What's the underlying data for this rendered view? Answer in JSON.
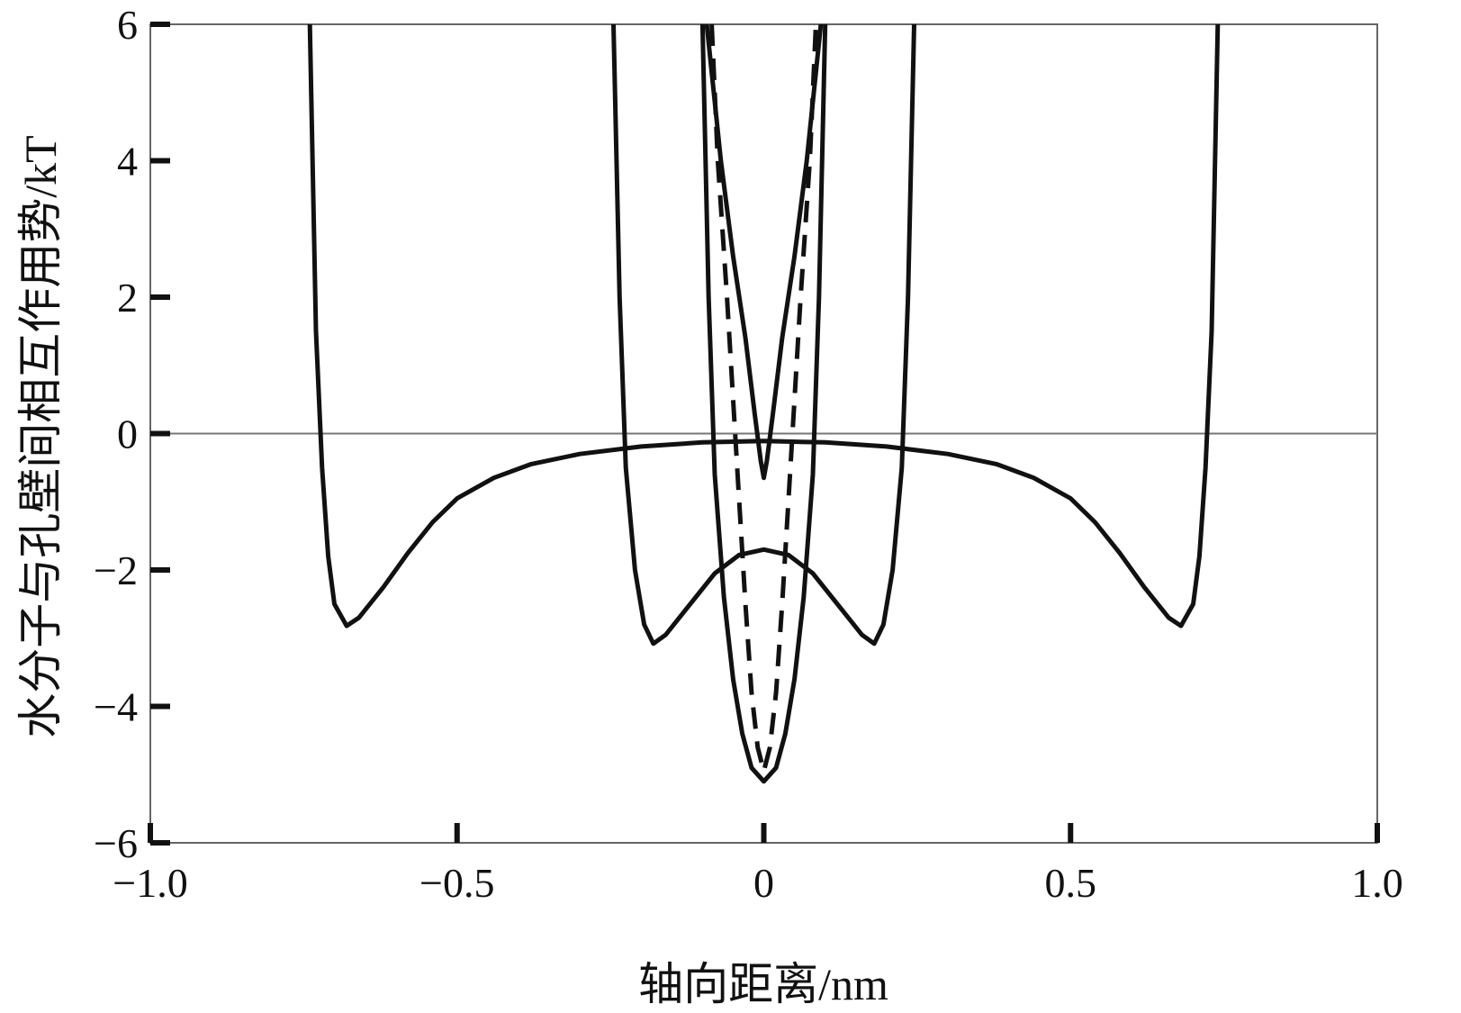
{
  "chart_data": {
    "type": "line",
    "xlabel": "轴向距离/nm",
    "ylabel": "水分子与孔壁间相互作用势/kT",
    "xlim": [
      -1.0,
      1.0
    ],
    "ylim": [
      -6,
      6
    ],
    "x_ticks": [
      "−1.0",
      "−0.5",
      "0",
      "0.5",
      "1.0"
    ],
    "y_ticks": [
      "−6",
      "−4",
      "−2",
      "0",
      "2",
      "4",
      "6"
    ],
    "x_tick_values": [
      -1.0,
      -0.5,
      0,
      0.5,
      1.0
    ],
    "y_tick_values": [
      -6,
      -4,
      -2,
      0,
      2,
      4,
      6
    ],
    "grid": false,
    "zero_line": true,
    "series": [
      {
        "style": "solid",
        "color": "#111111",
        "points": [
          [
            -0.74,
            6
          ],
          [
            -0.73,
            1.5
          ],
          [
            -0.72,
            -0.5
          ],
          [
            -0.71,
            -1.8
          ],
          [
            -0.7,
            -2.5
          ],
          [
            -0.68,
            -2.82
          ],
          [
            -0.66,
            -2.7
          ],
          [
            -0.62,
            -2.25
          ],
          [
            -0.58,
            -1.75
          ],
          [
            -0.54,
            -1.3
          ],
          [
            -0.5,
            -0.95
          ],
          [
            -0.44,
            -0.65
          ],
          [
            -0.38,
            -0.45
          ],
          [
            -0.3,
            -0.3
          ],
          [
            -0.2,
            -0.19
          ],
          [
            -0.1,
            -0.13
          ],
          [
            0,
            -0.11
          ],
          [
            0.1,
            -0.13
          ],
          [
            0.2,
            -0.19
          ],
          [
            0.3,
            -0.3
          ],
          [
            0.38,
            -0.45
          ],
          [
            0.44,
            -0.65
          ],
          [
            0.5,
            -0.95
          ],
          [
            0.54,
            -1.3
          ],
          [
            0.58,
            -1.75
          ],
          [
            0.62,
            -2.25
          ],
          [
            0.66,
            -2.7
          ],
          [
            0.68,
            -2.82
          ],
          [
            0.7,
            -2.5
          ],
          [
            0.71,
            -1.8
          ],
          [
            0.72,
            -0.5
          ],
          [
            0.73,
            1.5
          ],
          [
            0.74,
            6
          ]
        ]
      },
      {
        "style": "solid",
        "color": "#111111",
        "points": [
          [
            -0.245,
            6
          ],
          [
            -0.235,
            2.0
          ],
          [
            -0.225,
            -0.5
          ],
          [
            -0.21,
            -2.0
          ],
          [
            -0.195,
            -2.8
          ],
          [
            -0.18,
            -3.08
          ],
          [
            -0.16,
            -2.95
          ],
          [
            -0.12,
            -2.5
          ],
          [
            -0.08,
            -2.05
          ],
          [
            -0.04,
            -1.78
          ],
          [
            0,
            -1.7
          ],
          [
            0.04,
            -1.78
          ],
          [
            0.08,
            -2.05
          ],
          [
            0.12,
            -2.5
          ],
          [
            0.16,
            -2.95
          ],
          [
            0.18,
            -3.08
          ],
          [
            0.195,
            -2.8
          ],
          [
            0.21,
            -2.0
          ],
          [
            0.225,
            -0.5
          ],
          [
            0.235,
            2.0
          ],
          [
            0.245,
            6
          ]
        ]
      },
      {
        "style": "solid",
        "color": "#111111",
        "points": [
          [
            -0.1,
            6
          ],
          [
            -0.09,
            2.0
          ],
          [
            -0.08,
            -0.6
          ],
          [
            -0.065,
            -2.4
          ],
          [
            -0.05,
            -3.6
          ],
          [
            -0.035,
            -4.4
          ],
          [
            -0.02,
            -4.9
          ],
          [
            0,
            -5.1
          ],
          [
            0.02,
            -4.9
          ],
          [
            0.035,
            -4.4
          ],
          [
            0.05,
            -3.6
          ],
          [
            0.065,
            -2.4
          ],
          [
            0.08,
            -0.6
          ],
          [
            0.09,
            2.0
          ],
          [
            0.1,
            6
          ]
        ]
      },
      {
        "style": "solid",
        "color": "#111111",
        "points": [
          [
            -0.093,
            6
          ],
          [
            -0.07,
            4.0
          ],
          [
            -0.05,
            2.6
          ],
          [
            -0.03,
            1.4
          ],
          [
            -0.015,
            0.3
          ],
          [
            -0.005,
            -0.4
          ],
          [
            0,
            -0.65
          ],
          [
            0.005,
            -0.4
          ],
          [
            0.015,
            0.3
          ],
          [
            0.03,
            1.4
          ],
          [
            0.05,
            2.6
          ],
          [
            0.07,
            4.0
          ],
          [
            0.093,
            6
          ]
        ]
      },
      {
        "style": "dashed",
        "color": "#111111",
        "points": [
          [
            -0.085,
            6
          ],
          [
            -0.075,
            4.0
          ],
          [
            -0.06,
            2.0
          ],
          [
            -0.05,
            0.5
          ],
          [
            -0.04,
            -1.0
          ],
          [
            -0.03,
            -2.5
          ],
          [
            -0.02,
            -3.8
          ],
          [
            -0.01,
            -4.6
          ],
          [
            0,
            -4.95
          ],
          [
            0.01,
            -4.6
          ],
          [
            0.02,
            -3.8
          ],
          [
            0.03,
            -2.5
          ],
          [
            0.04,
            -1.0
          ],
          [
            0.05,
            0.5
          ],
          [
            0.06,
            2.0
          ],
          [
            0.075,
            4.0
          ],
          [
            0.085,
            6
          ]
        ]
      }
    ]
  }
}
